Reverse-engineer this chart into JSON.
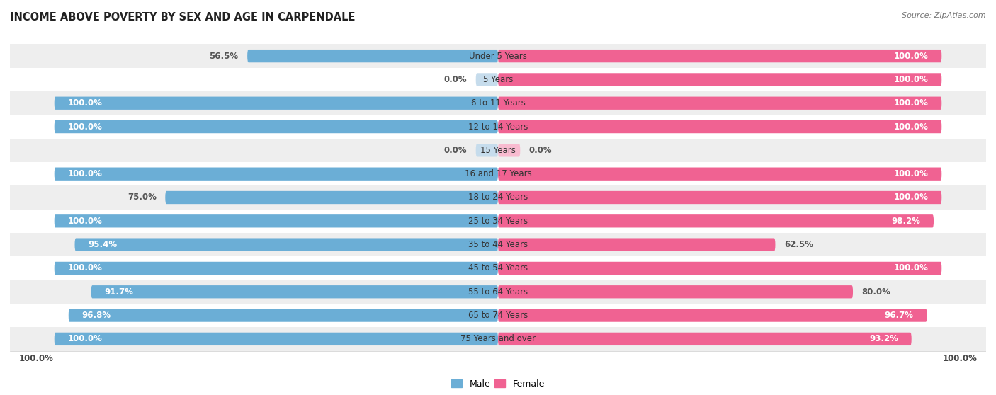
{
  "title": "INCOME ABOVE POVERTY BY SEX AND AGE IN CARPENDALE",
  "source": "Source: ZipAtlas.com",
  "categories": [
    "Under 5 Years",
    "5 Years",
    "6 to 11 Years",
    "12 to 14 Years",
    "15 Years",
    "16 and 17 Years",
    "18 to 24 Years",
    "25 to 34 Years",
    "35 to 44 Years",
    "45 to 54 Years",
    "55 to 64 Years",
    "65 to 74 Years",
    "75 Years and over"
  ],
  "male_values": [
    56.5,
    0.0,
    100.0,
    100.0,
    0.0,
    100.0,
    75.0,
    100.0,
    95.4,
    100.0,
    91.7,
    96.8,
    100.0
  ],
  "female_values": [
    100.0,
    100.0,
    100.0,
    100.0,
    0.0,
    100.0,
    100.0,
    98.2,
    62.5,
    100.0,
    80.0,
    96.7,
    93.2
  ],
  "male_color": "#6baed6",
  "female_color": "#f06292",
  "male_color_light": "#c6dcec",
  "female_color_light": "#f8bbd0",
  "bg_row_light": "#eeeeee",
  "bg_row_dark": "#ffffff",
  "title_fontsize": 10.5,
  "label_fontsize": 8.5,
  "bar_label_fontsize": 8.5,
  "legend_fontsize": 9,
  "max_value": 100.0,
  "bar_height": 0.55
}
